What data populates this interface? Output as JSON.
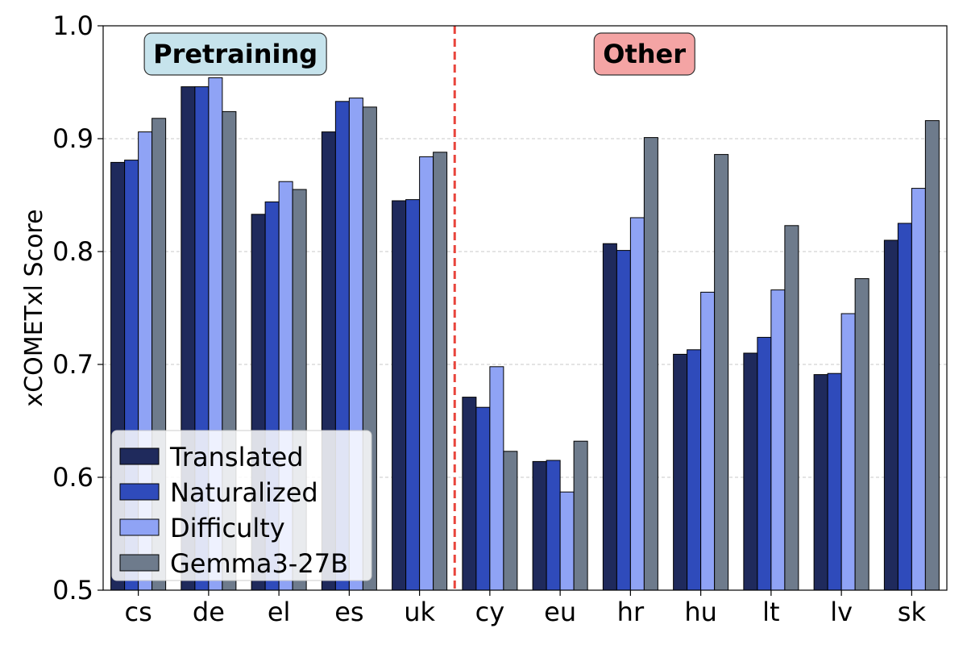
{
  "chart_data": {
    "type": "bar",
    "title": "",
    "xlabel": "",
    "ylabel": "xCOMETxl Score",
    "ylim": [
      0.5,
      1.0
    ],
    "yticks": [
      "0.5",
      "0.6",
      "0.7",
      "0.8",
      "0.9",
      "1.0"
    ],
    "grid": "horizontal dashed",
    "legend_position": "lower-left",
    "categories": [
      "cs",
      "de",
      "el",
      "es",
      "uk",
      "cy",
      "eu",
      "hr",
      "hu",
      "lt",
      "lv",
      "sk"
    ],
    "series": [
      {
        "name": "Translated",
        "color": "#1f2a5c",
        "values": [
          0.879,
          0.946,
          0.833,
          0.906,
          0.845,
          0.671,
          0.614,
          0.807,
          0.709,
          0.71,
          0.691,
          0.81
        ]
      },
      {
        "name": "Naturalized",
        "color": "#2f4bbb",
        "values": [
          0.881,
          0.946,
          0.844,
          0.933,
          0.846,
          0.662,
          0.615,
          0.801,
          0.713,
          0.724,
          0.692,
          0.825
        ]
      },
      {
        "name": "Difficulty",
        "color": "#8fa3f5",
        "values": [
          0.906,
          0.954,
          0.862,
          0.936,
          0.884,
          0.698,
          0.587,
          0.83,
          0.764,
          0.766,
          0.745,
          0.856
        ]
      },
      {
        "name": "Gemma3-27B",
        "color": "#6e7b8c",
        "values": [
          0.918,
          0.924,
          0.855,
          0.928,
          0.888,
          0.623,
          0.632,
          0.901,
          0.886,
          0.823,
          0.776,
          0.916
        ]
      }
    ],
    "groups": [
      {
        "label": "Pretraining",
        "color": "#c6e3ec"
      },
      {
        "label": "Other",
        "color": "#f4a4a4"
      }
    ],
    "divider_color": "#e8453c"
  }
}
